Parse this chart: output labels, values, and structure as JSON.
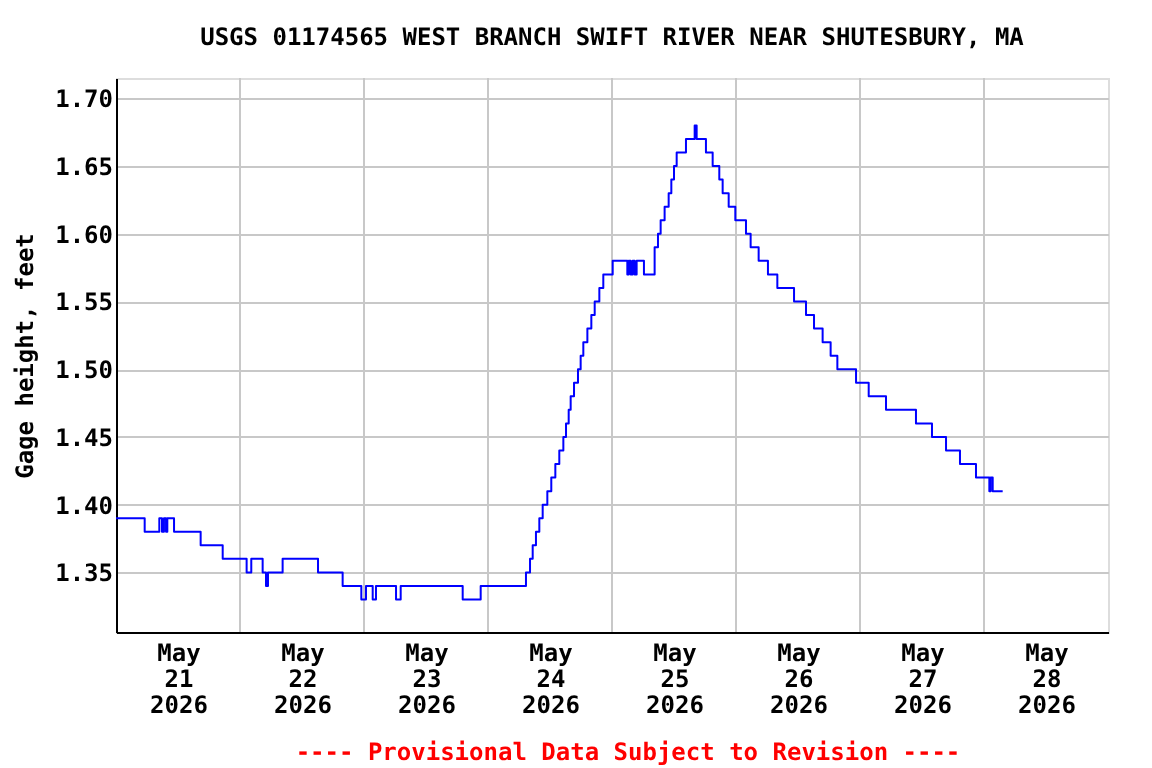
{
  "chart_data": {
    "type": "step",
    "title": "USGS 01174565 WEST BRANCH SWIFT RIVER NEAR SHUTESBURY, MA",
    "ylabel": "Gage height, feet",
    "annotations": [
      "---- Provisional Data Subject to Revision ----"
    ],
    "xlim": [
      "2026-05-21T00:00",
      "2026-05-29T00:00"
    ],
    "xticks": [
      {
        "value": "2026-05-21T12:00",
        "label": "May 21 2026"
      },
      {
        "value": "2026-05-22T12:00",
        "label": "May 22 2026"
      },
      {
        "value": "2026-05-23T12:00",
        "label": "May 23 2026"
      },
      {
        "value": "2026-05-24T12:00",
        "label": "May 24 2026"
      },
      {
        "value": "2026-05-25T12:00",
        "label": "May 25 2026"
      },
      {
        "value": "2026-05-26T12:00",
        "label": "May 26 2026"
      },
      {
        "value": "2026-05-27T12:00",
        "label": "May 27 2026"
      },
      {
        "value": "2026-05-28T12:00",
        "label": "May 28 2026"
      },
      {
        "value": "2026-05-22T00:00",
        "label": null
      },
      {
        "value": "2026-05-23T00:00",
        "label": null
      },
      {
        "value": "2026-05-24T00:00",
        "label": null
      },
      {
        "value": "2026-05-25T00:00",
        "label": null
      },
      {
        "value": "2026-05-26T00:00",
        "label": null
      },
      {
        "value": "2026-05-27T00:00",
        "label": null
      },
      {
        "value": "2026-05-28T00:00",
        "label": null
      }
    ],
    "ylim": [
      1.306,
      1.715
    ],
    "yticks": [
      {
        "value": 1.35,
        "label": "1.35"
      },
      {
        "value": 1.4,
        "label": "1.40"
      },
      {
        "value": 1.45,
        "label": "1.45"
      },
      {
        "value": 1.5,
        "label": "1.50"
      },
      {
        "value": 1.55,
        "label": "1.55"
      },
      {
        "value": 1.6,
        "label": "1.60"
      },
      {
        "value": 1.65,
        "label": "1.65"
      },
      {
        "value": 1.7,
        "label": "1.70"
      }
    ],
    "grid": true,
    "line_style": "solid",
    "marker": "none",
    "x": [
      "2026-05-21T00:00",
      "2026-05-21T05:33",
      "2026-05-21T08:23",
      "2026-05-21T08:54",
      "2026-05-21T09:17",
      "2026-05-21T09:41",
      "2026-05-21T09:56",
      "2026-05-21T11:14",
      "2026-05-21T16:23",
      "2026-05-21T20:39",
      "2026-05-22T01:17",
      "2026-05-22T02:11",
      "2026-05-22T04:23",
      "2026-05-22T05:02",
      "2026-05-22T05:25",
      "2026-05-22T08:15",
      "2026-05-22T15:06",
      "2026-05-22T19:52",
      "2026-05-22T23:29",
      "2026-05-23T00:23",
      "2026-05-23T01:41",
      "2026-05-23T02:19",
      "2026-05-23T06:12",
      "2026-05-23T07:06",
      "2026-05-23T19:06",
      "2026-05-23T22:35",
      "2026-05-24T07:21",
      "2026-05-24T08:08",
      "2026-05-24T08:39",
      "2026-05-24T09:17",
      "2026-05-24T09:56",
      "2026-05-24T10:35",
      "2026-05-24T11:29",
      "2026-05-24T12:15",
      "2026-05-24T13:02",
      "2026-05-24T13:48",
      "2026-05-24T14:35",
      "2026-05-24T15:06",
      "2026-05-24T15:37",
      "2026-05-24T16:00",
      "2026-05-24T16:39",
      "2026-05-24T17:25",
      "2026-05-24T17:56",
      "2026-05-24T18:27",
      "2026-05-24T19:14",
      "2026-05-24T20:00",
      "2026-05-24T20:39",
      "2026-05-24T21:33",
      "2026-05-24T22:19",
      "2026-05-25T00:08",
      "2026-05-25T02:58",
      "2026-05-25T03:14",
      "2026-05-25T03:37",
      "2026-05-25T04:00",
      "2026-05-25T04:23",
      "2026-05-25T04:46",
      "2026-05-25T06:11",
      "2026-05-25T08:15",
      "2026-05-25T08:54",
      "2026-05-25T09:25",
      "2026-05-25T10:11",
      "2026-05-25T10:58",
      "2026-05-25T11:29",
      "2026-05-25T12:00",
      "2026-05-25T12:31",
      "2026-05-25T14:19",
      "2026-05-25T16:00",
      "2026-05-25T16:23",
      "2026-05-25T18:11",
      "2026-05-25T19:29",
      "2026-05-25T20:46",
      "2026-05-25T21:25",
      "2026-05-25T22:35",
      "2026-05-25T23:52",
      "2026-05-26T01:56",
      "2026-05-26T02:50",
      "2026-05-26T04:23",
      "2026-05-26T06:11",
      "2026-05-26T08:00",
      "2026-05-26T11:14",
      "2026-05-26T13:33",
      "2026-05-26T15:06",
      "2026-05-26T16:46",
      "2026-05-26T18:19",
      "2026-05-26T19:37",
      "2026-05-26T23:14",
      "2026-05-27T01:41",
      "2026-05-27T05:02",
      "2026-05-27T10:50",
      "2026-05-27T13:56",
      "2026-05-27T16:39",
      "2026-05-27T19:21",
      "2026-05-27T22:27",
      "2026-05-28T01:02",
      "2026-05-28T01:17",
      "2026-05-28T01:41",
      "2026-05-28T03:37"
    ],
    "series": [
      {
        "color": "#0000ff",
        "values": [
          1.39,
          1.38,
          1.39,
          1.38,
          1.39,
          1.38,
          1.39,
          1.38,
          1.37,
          1.36,
          1.35,
          1.36,
          1.35,
          1.34,
          1.35,
          1.36,
          1.35,
          1.34,
          1.33,
          1.34,
          1.33,
          1.34,
          1.33,
          1.34,
          1.33,
          1.34,
          1.35,
          1.36,
          1.37,
          1.38,
          1.39,
          1.4,
          1.41,
          1.42,
          1.43,
          1.44,
          1.45,
          1.46,
          1.47,
          1.48,
          1.49,
          1.5,
          1.51,
          1.52,
          1.53,
          1.54,
          1.55,
          1.56,
          1.57,
          1.58,
          1.57,
          1.58,
          1.57,
          1.58,
          1.57,
          1.58,
          1.57,
          1.59,
          1.6,
          1.61,
          1.62,
          1.63,
          1.64,
          1.65,
          1.66,
          1.67,
          1.68,
          1.67,
          1.66,
          1.65,
          1.64,
          1.63,
          1.62,
          1.61,
          1.6,
          1.59,
          1.58,
          1.57,
          1.56,
          1.55,
          1.54,
          1.53,
          1.52,
          1.51,
          1.5,
          1.49,
          1.48,
          1.47,
          1.46,
          1.45,
          1.44,
          1.43,
          1.42,
          1.41,
          1.42,
          1.41,
          1.41
        ]
      }
    ]
  }
}
